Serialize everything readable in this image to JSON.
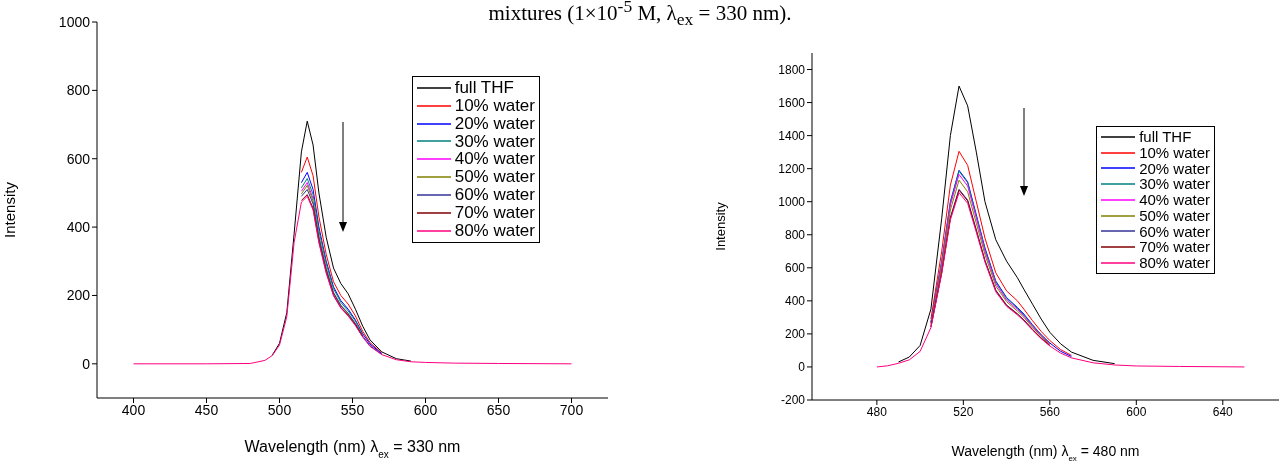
{
  "chart_data": [
    {
      "type": "line",
      "title": "mixtures (1×10$^{-5}$ M,  λ$_{ex}$ = 330 nm).",
      "xlabel": "Wavelength (nm)    λ$_{ex}$ = 330 nm",
      "ylabel": "Intensity",
      "x": [
        400,
        450,
        480,
        490,
        495,
        500,
        505,
        510,
        515,
        519,
        523,
        527,
        532,
        537,
        542,
        547,
        552,
        557,
        562,
        570,
        580,
        590,
        600,
        620,
        650,
        700
      ],
      "xlim": [
        375,
        725
      ],
      "xticks": [
        400,
        450,
        500,
        550,
        600,
        650,
        700
      ],
      "ylim": [
        -100,
        1000
      ],
      "yticks": [
        0,
        200,
        400,
        600,
        800,
        1000
      ],
      "legend": "top right",
      "marker": "none",
      "line_style": "solid",
      "series": [
        {
          "name": "full THF",
          "color": "#000000",
          "values": [
            null,
            null,
            null,
            null,
            25,
            60,
            150,
            380,
            620,
            710,
            640,
            500,
            370,
            280,
            235,
            205,
            160,
            110,
            70,
            35,
            15,
            8,
            null,
            null,
            null,
            null
          ]
        },
        {
          "name": "10% water",
          "color": "#ff0000",
          "values": [
            null,
            null,
            null,
            null,
            null,
            null,
            null,
            null,
            560,
            605,
            550,
            430,
            320,
            240,
            200,
            175,
            140,
            95,
            62,
            32,
            null,
            null,
            null,
            null,
            null,
            null
          ]
        },
        {
          "name": "20% water",
          "color": "#0000ff",
          "values": [
            null,
            null,
            null,
            null,
            null,
            null,
            null,
            null,
            530,
            560,
            510,
            400,
            300,
            225,
            185,
            160,
            128,
            88,
            58,
            30,
            null,
            null,
            null,
            null,
            null,
            null
          ]
        },
        {
          "name": "30% water",
          "color": "#008080",
          "values": [
            null,
            null,
            null,
            null,
            null,
            null,
            null,
            null,
            515,
            542,
            495,
            390,
            293,
            220,
            180,
            155,
            125,
            86,
            null,
            null,
            null,
            null,
            null,
            null,
            null,
            null
          ]
        },
        {
          "name": "40% water",
          "color": "#ff00ff",
          "values": [
            null,
            null,
            null,
            null,
            null,
            null,
            null,
            null,
            505,
            530,
            483,
            null,
            null,
            null,
            null,
            null,
            null,
            null,
            null,
            null,
            null,
            null,
            null,
            null,
            null,
            null
          ]
        },
        {
          "name": "50% water",
          "color": "#808000",
          "values": [
            null,
            null,
            null,
            null,
            null,
            null,
            null,
            null,
            497,
            522,
            476,
            374,
            280,
            209,
            172,
            148,
            118,
            82,
            null,
            null,
            null,
            null,
            null,
            null,
            null,
            null
          ]
        },
        {
          "name": "60% water",
          "color": "#333399",
          "values": [
            null,
            null,
            null,
            null,
            null,
            null,
            null,
            null,
            490,
            510,
            468,
            368,
            276,
            207,
            170,
            146,
            117,
            81,
            53,
            28,
            null,
            null,
            null,
            null,
            null,
            null
          ]
        },
        {
          "name": "70% water",
          "color": "#800000",
          "values": [
            null,
            null,
            null,
            null,
            null,
            null,
            null,
            null,
            478,
            495,
            455,
            358,
            268,
            201,
            165,
            142,
            114,
            79,
            null,
            null,
            null,
            null,
            null,
            null,
            null,
            null
          ]
        },
        {
          "name": "80% water",
          "color": "#ff0080",
          "values": [
            0,
            0,
            1,
            10,
            24,
            55,
            138,
            355,
            473,
            490,
            450,
            354,
            265,
            199,
            163,
            140,
            112,
            78,
            51,
            27,
            12,
            6,
            4,
            2,
            1,
            0
          ]
        }
      ]
    },
    {
      "type": "line",
      "xlabel": "Wavelength (nm)    λ$_{ex}$ = 480 nm",
      "ylabel": "Intensity",
      "x": [
        480,
        485,
        490,
        495,
        500,
        505,
        510,
        514,
        518,
        522,
        526,
        530,
        535,
        540,
        545,
        548,
        552,
        556,
        560,
        565,
        570,
        580,
        590,
        600,
        620,
        650
      ],
      "xlim": [
        450,
        666
      ],
      "xticks": [
        480,
        520,
        560,
        600,
        640
      ],
      "ylim": [
        -200,
        1900
      ],
      "yticks": [
        -200,
        0,
        200,
        400,
        600,
        800,
        1000,
        1200,
        1400,
        1600,
        1800
      ],
      "legend": "top right",
      "marker": "none",
      "line_style": "solid",
      "series": [
        {
          "name": "full THF",
          "color": "#000000",
          "values": [
            null,
            null,
            30,
            60,
            130,
            350,
            900,
            1400,
            1700,
            1580,
            1300,
            1000,
            770,
            640,
            540,
            470,
            380,
            290,
            210,
            140,
            90,
            40,
            20,
            null,
            null,
            null
          ]
        },
        {
          "name": "10% water",
          "color": "#ff0000",
          "values": [
            null,
            null,
            null,
            null,
            null,
            290,
            700,
            1100,
            1305,
            1220,
            1000,
            780,
            570,
            460,
            400,
            350,
            280,
            215,
            160,
            105,
            70,
            null,
            null,
            null,
            null,
            null
          ]
        },
        {
          "name": "20% water",
          "color": "#0000ff",
          "values": [
            null,
            null,
            null,
            null,
            null,
            270,
            640,
            1000,
            1190,
            1120,
            920,
            720,
            520,
            420,
            360,
            320,
            255,
            195,
            145,
            95,
            63,
            null,
            null,
            null,
            null,
            null
          ]
        },
        {
          "name": "30% water",
          "color": "#008080",
          "values": [
            null,
            null,
            null,
            null,
            null,
            268,
            635,
            995,
            1185,
            1115,
            915,
            715,
            515,
            415,
            355,
            315,
            252,
            193,
            143,
            null,
            null,
            null,
            null,
            null,
            null,
            null
          ]
        },
        {
          "name": "40% water",
          "color": "#ff00ff",
          "values": [
            null,
            null,
            null,
            null,
            null,
            264,
            625,
            980,
            1165,
            1095,
            900,
            700,
            505,
            405,
            348,
            308,
            247,
            189,
            140,
            null,
            null,
            null,
            null,
            null,
            null,
            null
          ]
        },
        {
          "name": "50% water",
          "color": "#808000",
          "values": [
            null,
            null,
            null,
            null,
            null,
            256,
            605,
            950,
            1130,
            1060,
            870,
            680,
            490,
            395,
            338,
            300,
            240,
            184,
            136,
            null,
            null,
            null,
            null,
            null,
            null,
            null
          ]
        },
        {
          "name": "60% water",
          "color": "#333399",
          "values": [
            null,
            null,
            null,
            null,
            null,
            243,
            575,
            905,
            1075,
            1010,
            830,
            645,
            465,
            375,
            322,
            285,
            228,
            175,
            130,
            null,
            null,
            null,
            null,
            null,
            null,
            null
          ]
        },
        {
          "name": "70% water",
          "color": "#800000",
          "values": [
            null,
            null,
            null,
            null,
            null,
            242,
            572,
            900,
            1070,
            1005,
            825,
            642,
            462,
            372,
            320,
            283,
            226,
            174,
            129,
            null,
            null,
            null,
            null,
            null,
            null,
            null
          ]
        },
        {
          "name": "80% water",
          "color": "#ff0080",
          "values": [
            0,
            7,
            22,
            43,
            94,
            238,
            565,
            890,
            1055,
            990,
            815,
            635,
            455,
            367,
            315,
            279,
            223,
            171,
            127,
            84,
            55,
            25,
            12,
            6,
            3,
            0
          ]
        }
      ]
    }
  ]
}
